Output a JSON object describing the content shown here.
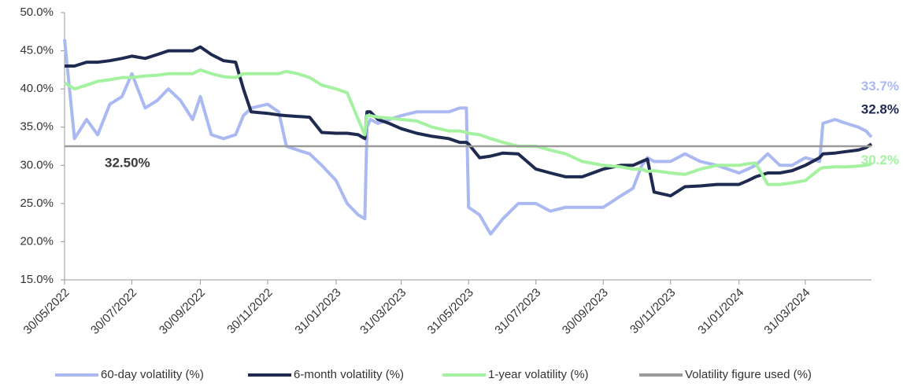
{
  "chart_data": {
    "type": "line",
    "x": [
      "30/05/2022",
      "08/06/2022",
      "19/06/2022",
      "29/06/2022",
      "10/07/2022",
      "21/07/2022",
      "30/07/2022",
      "11/08/2022",
      "22/08/2022",
      "01/09/2022",
      "12/09/2022",
      "23/09/2022",
      "30/09/2022",
      "10/10/2022",
      "21/10/2022",
      "01/11/2022",
      "08/11/2022",
      "15/11/2022",
      "30/11/2022",
      "10/12/2022",
      "17/12/2022",
      "27/12/2022",
      "07/01/2023",
      "18/01/2023",
      "31/01/2023",
      "10/02/2023",
      "20/02/2023",
      "26/02/2023",
      "28/02/2023",
      "03/03/2023",
      "10/03/2023",
      "20/03/2023",
      "31/03/2023",
      "14/04/2023",
      "28/04/2023",
      "13/05/2023",
      "23/05/2023",
      "29/05/2023",
      "31/05/2023",
      "10/06/2023",
      "20/06/2023",
      "01/07/2023",
      "15/07/2023",
      "31/07/2023",
      "13/08/2023",
      "27/08/2023",
      "11/09/2023",
      "30/09/2023",
      "16/10/2023",
      "27/10/2023",
      "04/11/2023",
      "09/11/2023",
      "15/11/2023",
      "30/11/2023",
      "13/12/2023",
      "27/12/2023",
      "11/01/2024",
      "31/01/2024",
      "08/02/2024",
      "15/02/2024",
      "26/02/2024",
      "08/03/2024",
      "19/03/2024",
      "31/03/2024",
      "13/04/2024",
      "16/04/2024",
      "27/04/2024",
      "07/05/2024",
      "18/05/2024",
      "25/05/2024",
      "30/05/2024"
    ],
    "series": [
      {
        "name": "60-day volatility (%)",
        "color": "#aab9f2",
        "end_label": "33.7%",
        "values": [
          46.5,
          33.5,
          36,
          34,
          38,
          39,
          42,
          37.5,
          38.5,
          40,
          38.5,
          36,
          39,
          34,
          33.5,
          34,
          36.5,
          37.5,
          38,
          37,
          32.5,
          32,
          31.5,
          30,
          28,
          25,
          23.5,
          23,
          35,
          36,
          35.5,
          36,
          36.5,
          37,
          37,
          37,
          37.5,
          37.5,
          24.5,
          23.5,
          21,
          23,
          25,
          25,
          24,
          24.5,
          24.5,
          24.5,
          26,
          27,
          30,
          31,
          30.5,
          30.5,
          31.5,
          30.5,
          30,
          29,
          29.5,
          30,
          31.5,
          30,
          30,
          31,
          30.5,
          35.5,
          36,
          35.5,
          35,
          34.5,
          33.7
        ]
      },
      {
        "name": "6-month volatility (%)",
        "color": "#1e2a4f",
        "end_label": "32.8%",
        "values": [
          43,
          43,
          43.5,
          43.5,
          43.7,
          44,
          44.3,
          44,
          44.5,
          45,
          45,
          45,
          45.5,
          44.5,
          43.7,
          43.5,
          40,
          37,
          36.8,
          36.6,
          36.5,
          36.4,
          36.3,
          34.3,
          34.2,
          34.2,
          34,
          33.5,
          37,
          37,
          36,
          35.5,
          34.8,
          34.2,
          33.8,
          33.5,
          33,
          33,
          32.8,
          31,
          31.2,
          31.6,
          31.5,
          29.5,
          29,
          28.5,
          28.5,
          29.5,
          30,
          30,
          30.5,
          30.8,
          26.5,
          26,
          27.2,
          27.3,
          27.5,
          27.5,
          28,
          28.5,
          29,
          29,
          29.3,
          30,
          31,
          31.5,
          31.6,
          31.8,
          32,
          32.3,
          32.8
        ]
      },
      {
        "name": "1-year volatility (%)",
        "color": "#a4f2a0",
        "end_label": "30.2%",
        "values": [
          40.8,
          40,
          40.5,
          41,
          41.2,
          41.5,
          41.5,
          41.7,
          41.8,
          42,
          42,
          42,
          42.5,
          42,
          41.6,
          41.5,
          42,
          42,
          42,
          42,
          42.3,
          42,
          41.5,
          40.5,
          40,
          39.5,
          36,
          34,
          36.5,
          36.5,
          36.3,
          36.2,
          36,
          35.8,
          35,
          34.5,
          34.5,
          34.3,
          34.2,
          34,
          33.5,
          33,
          32.5,
          32.5,
          32,
          31.5,
          30.5,
          30,
          29.8,
          29.5,
          29.5,
          29.2,
          29.3,
          29,
          28.8,
          29.5,
          30,
          30,
          30.2,
          30.3,
          27.5,
          27.5,
          27.7,
          28,
          29.5,
          29.7,
          29.8,
          29.8,
          29.9,
          30,
          30.2
        ]
      },
      {
        "name": "Volatility figure used (%)",
        "color": "#9a9a9a",
        "value": 32.5,
        "label": "32.50%"
      }
    ],
    "xlim": [
      "30/05/2022",
      "30/05/2024"
    ],
    "xticks": [
      "30/05/2022",
      "30/07/2022",
      "30/09/2022",
      "30/11/2022",
      "31/01/2023",
      "31/03/2023",
      "31/05/2023",
      "31/07/2023",
      "30/09/2023",
      "30/11/2023",
      "31/01/2024",
      "31/03/2024"
    ],
    "ylim": [
      15,
      50
    ],
    "yticks": [
      {
        "value": 15,
        "label": "15.0%"
      },
      {
        "value": 20,
        "label": "20.0%"
      },
      {
        "value": 25,
        "label": "25.0%"
      },
      {
        "value": 30,
        "label": "30.0%"
      },
      {
        "value": 35,
        "label": "35.0%"
      },
      {
        "value": 40,
        "label": "40.0%"
      },
      {
        "value": 45,
        "label": "45.0%"
      },
      {
        "value": 50,
        "label": "50.0%"
      }
    ],
    "legend": "bottom"
  }
}
